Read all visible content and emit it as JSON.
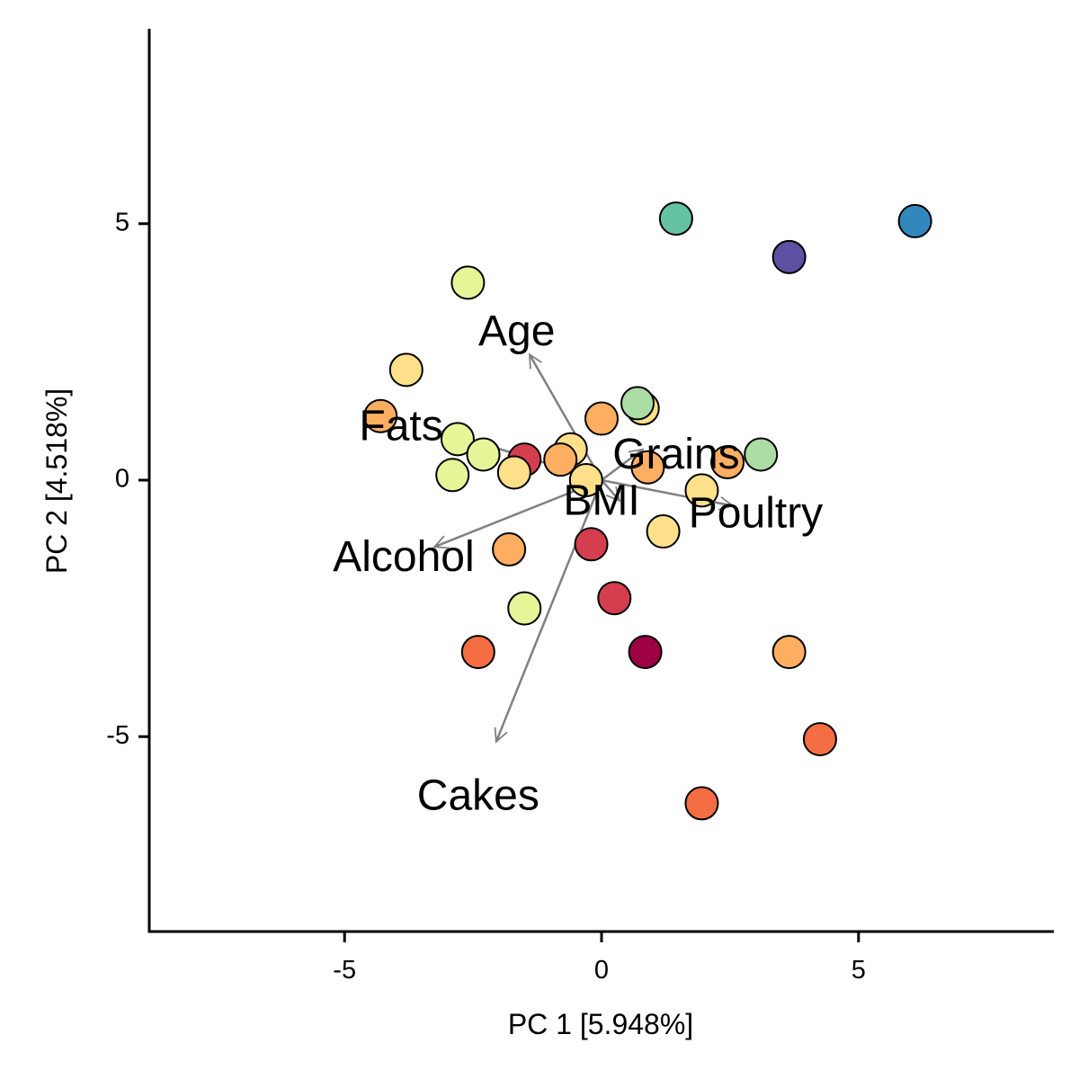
{
  "chart_data": {
    "type": "scatter",
    "xlabel": "PC 1 [5.948%]",
    "ylabel": "PC 2 [4.518%]",
    "xlim": [
      -8.8,
      8.8
    ],
    "ylim": [
      -8.8,
      8.8
    ],
    "x_ticks": [
      {
        "value": -5,
        "label": "-5"
      },
      {
        "value": 0,
        "label": "0"
      },
      {
        "value": 5,
        "label": "5"
      }
    ],
    "y_ticks": [
      {
        "value": 5,
        "label": "5"
      },
      {
        "value": 0,
        "label": "0"
      },
      {
        "value": -5,
        "label": "-5"
      }
    ],
    "grid": false,
    "colormap": "Spectral",
    "points": [
      {
        "x": 1.45,
        "y": 5.1,
        "color": "#66c2a5"
      },
      {
        "x": 6.1,
        "y": 5.05,
        "color": "#3288bd"
      },
      {
        "x": 3.65,
        "y": 4.35,
        "color": "#5e4fa2"
      },
      {
        "x": -2.6,
        "y": 3.85,
        "color": "#e6f598"
      },
      {
        "x": -3.8,
        "y": 2.15,
        "color": "#fee08b"
      },
      {
        "x": 0.8,
        "y": 1.4,
        "color": "#fee08b"
      },
      {
        "x": 0.7,
        "y": 1.5,
        "color": "#abdda4"
      },
      {
        "x": 0.0,
        "y": 1.2,
        "color": "#fdae61"
      },
      {
        "x": -4.3,
        "y": 1.25,
        "color": "#fdae61"
      },
      {
        "x": -2.8,
        "y": 0.8,
        "color": "#e6f598"
      },
      {
        "x": -2.3,
        "y": 0.5,
        "color": "#e6f598"
      },
      {
        "x": -0.6,
        "y": 0.6,
        "color": "#fee08b"
      },
      {
        "x": -0.8,
        "y": 0.4,
        "color": "#fdae61"
      },
      {
        "x": -1.5,
        "y": 0.4,
        "color": "#d53e4f"
      },
      {
        "x": -1.7,
        "y": 0.15,
        "color": "#fee08b"
      },
      {
        "x": -2.9,
        "y": 0.1,
        "color": "#e6f598"
      },
      {
        "x": -0.3,
        "y": 0.0,
        "color": "#fee08b"
      },
      {
        "x": 0.9,
        "y": 0.25,
        "color": "#fdae61"
      },
      {
        "x": 2.45,
        "y": 0.35,
        "color": "#fdae61"
      },
      {
        "x": 3.1,
        "y": 0.5,
        "color": "#abdda4"
      },
      {
        "x": 1.95,
        "y": -0.2,
        "color": "#fee08b"
      },
      {
        "x": 1.2,
        "y": -1.0,
        "color": "#fee08b"
      },
      {
        "x": -1.8,
        "y": -1.35,
        "color": "#fdae61"
      },
      {
        "x": -0.2,
        "y": -1.25,
        "color": "#d53e4f"
      },
      {
        "x": 0.25,
        "y": -2.3,
        "color": "#d53e4f"
      },
      {
        "x": -1.5,
        "y": -2.5,
        "color": "#e6f598"
      },
      {
        "x": -2.4,
        "y": -3.35,
        "color": "#f46d43"
      },
      {
        "x": 0.85,
        "y": -3.35,
        "color": "#9e0142"
      },
      {
        "x": 3.65,
        "y": -3.35,
        "color": "#fdae61"
      },
      {
        "x": 4.25,
        "y": -5.05,
        "color": "#f46d43"
      },
      {
        "x": 1.95,
        "y": -6.3,
        "color": "#f46d43"
      }
    ],
    "loadings": [
      {
        "name": "Age",
        "x": -1.4,
        "y": 2.45,
        "label_x": -1.65,
        "label_y": 2.85
      },
      {
        "name": "Fats",
        "x": -3.1,
        "y": 0.95,
        "label_x": -3.9,
        "label_y": 1.0
      },
      {
        "name": "Grains",
        "x": 0.8,
        "y": 0.6,
        "label_x": 1.45,
        "label_y": 0.45
      },
      {
        "name": "BMI",
        "x": 0.35,
        "y": -0.4,
        "label_x": 0.0,
        "label_y": -0.45
      },
      {
        "name": "Poultry",
        "x": 2.55,
        "y": -0.5,
        "label_x": 3.0,
        "label_y": -0.7
      },
      {
        "name": "Alcohol",
        "x": -3.25,
        "y": -1.3,
        "label_x": -3.85,
        "label_y": -1.55
      },
      {
        "name": "Cakes",
        "x": -2.05,
        "y": -5.1,
        "label_x": -2.4,
        "label_y": -6.2
      }
    ],
    "arrow_color": "#808080"
  }
}
